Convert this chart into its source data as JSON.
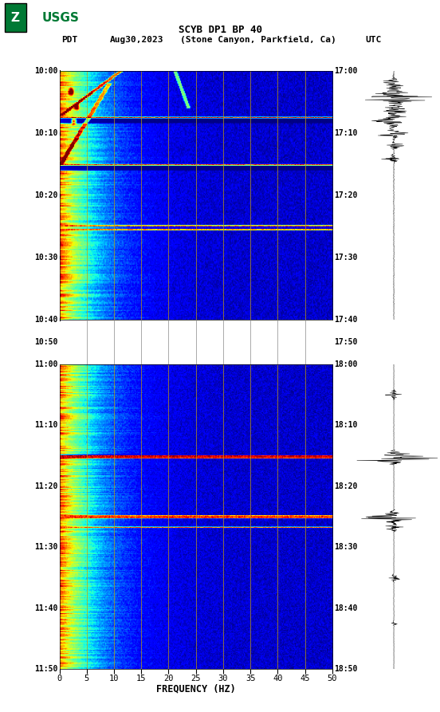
{
  "title_line1": "SCYB DP1 BP 40",
  "title_line2_left": "PDT",
  "title_line2_date": "Aug30,2023",
  "title_line2_loc": "(Stone Canyon, Parkfield, Ca)",
  "title_line2_right": "UTC",
  "xlabel": "FREQUENCY (HZ)",
  "freq_ticks": [
    0,
    5,
    10,
    15,
    20,
    25,
    30,
    35,
    40,
    45,
    50
  ],
  "left_time_labels_panel1": [
    "10:00",
    "10:10",
    "10:20",
    "10:30",
    "10:40"
  ],
  "left_time_labels_gap": [
    "10:50"
  ],
  "left_time_labels_panel2": [
    "11:00",
    "11:10",
    "11:20",
    "11:30",
    "11:40",
    "11:50"
  ],
  "right_time_labels_panel1": [
    "17:00",
    "17:10",
    "17:20",
    "17:30",
    "17:40"
  ],
  "right_time_labels_gap": [
    "17:50"
  ],
  "right_time_labels_panel2": [
    "18:00",
    "18:10",
    "18:20",
    "18:30",
    "18:40",
    "18:50"
  ],
  "bg_color": "white",
  "spectrogram_cmap": "jet",
  "usgs_green": "#007934",
  "grid_color_vertical": "#c8a000",
  "grid_color_gap": "#888888"
}
